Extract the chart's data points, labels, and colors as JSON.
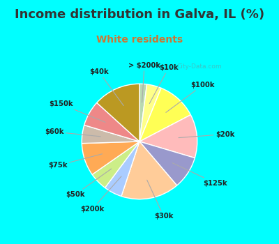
{
  "title": "Income distribution in Galva, IL (%)",
  "subtitle": "White residents",
  "watermark": "City-Data.com",
  "background_outer": "#00FFFF",
  "background_inner_top": "#d8f0e8",
  "background_inner_bottom": "#e8f8f0",
  "title_color": "#333333",
  "title_fontsize": 13,
  "subtitle_fontsize": 10,
  "subtitle_color": "#cc7733",
  "labels": [
    "> $200k",
    "$10k",
    "$100k",
    "$20k",
    "$125k",
    "$30k",
    "$200k",
    "$50k",
    "$75k",
    "$60k",
    "$150k",
    "$40k"
  ],
  "values": [
    2,
    4,
    11,
    12,
    9,
    16,
    5,
    5,
    9,
    5,
    7,
    13
  ],
  "colors": [
    "#b8d8b0",
    "#ffff88",
    "#ffff55",
    "#ffbbbb",
    "#9999cc",
    "#ffcc99",
    "#aaccff",
    "#ccee88",
    "#ffaa55",
    "#ccbbaa",
    "#ee8888",
    "#bb9922"
  ],
  "start_angle": 90
}
